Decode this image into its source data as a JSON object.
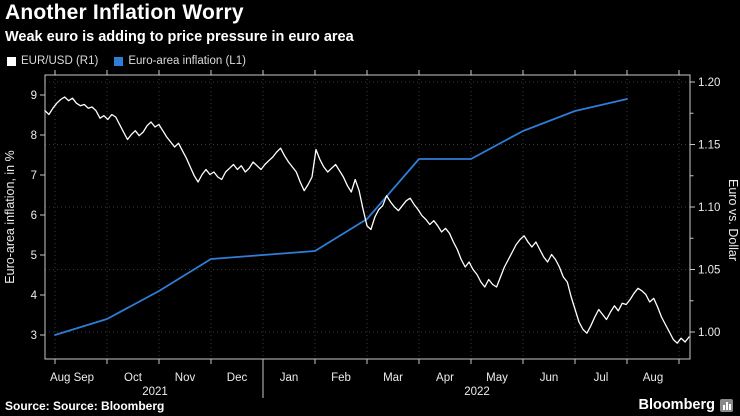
{
  "header": {
    "title": "Another Inflation Worry",
    "subtitle": "Weak euro is adding to price pressure in euro area"
  },
  "legend": [
    {
      "label": "EUR/USD (R1)",
      "color": "#ffffff"
    },
    {
      "label": "Euro-area inflation (L1)",
      "color": "#2e7dd7"
    }
  ],
  "footer": {
    "source": "Source: Source: Bloomberg",
    "brand": "Bloomberg",
    "brand_icon": "bar-chart-icon"
  },
  "colors": {
    "background": "#000000",
    "frame": "#c8c8c8",
    "grid": "#3a3a3a",
    "eurusd_line": "#ffffff",
    "inflation_line": "#2e7dd7"
  },
  "chart_data": {
    "type": "line",
    "title": "Another Inflation Worry",
    "subtitle": "Weak euro is adding to price pressure in euro area",
    "grid": "dotted, vertical per month and horizontal per right-axis tick",
    "legend_position": "top-left",
    "left_axis": {
      "title": "Euro-area inflation, in %",
      "ticks": [
        "9",
        "8",
        "7",
        "6",
        "5",
        "4",
        "3"
      ],
      "range": [
        2.5,
        9.5
      ]
    },
    "right_axis": {
      "title": "Euro vs. Dollar",
      "ticks": [
        "1.20",
        "1.15",
        "1.10",
        "1.05",
        "1.00"
      ],
      "range": [
        0.978,
        1.202
      ]
    },
    "x_axis": {
      "start": "mid-Aug 2021",
      "end": "late Aug 2022",
      "month_labels": [
        "Aug Sep",
        "Oct",
        "Nov",
        "Dec",
        "Jan",
        "Feb",
        "Mar",
        "Apr",
        "May",
        "Jun",
        "Jul",
        "Aug"
      ],
      "year_labels": [
        "2021",
        "2022"
      ],
      "year_separator_after_month_index": 4
    },
    "series": [
      {
        "name": "EUR/USD",
        "legend": "EUR/USD (R1)",
        "axis": "right",
        "color": "#ffffff",
        "sampling": "approx. every 2.3 days from mid-Aug 2021 to late Aug 2022",
        "values": [
          1.177,
          1.174,
          1.179,
          1.183,
          1.186,
          1.188,
          1.185,
          1.187,
          1.183,
          1.181,
          1.182,
          1.179,
          1.18,
          1.177,
          1.171,
          1.173,
          1.17,
          1.174,
          1.172,
          1.166,
          1.16,
          1.154,
          1.158,
          1.161,
          1.157,
          1.16,
          1.165,
          1.168,
          1.164,
          1.166,
          1.161,
          1.156,
          1.152,
          1.148,
          1.151,
          1.145,
          1.139,
          1.132,
          1.125,
          1.12,
          1.126,
          1.13,
          1.126,
          1.128,
          1.124,
          1.122,
          1.128,
          1.131,
          1.134,
          1.13,
          1.133,
          1.128,
          1.131,
          1.136,
          1.133,
          1.13,
          1.134,
          1.137,
          1.14,
          1.144,
          1.147,
          1.141,
          1.136,
          1.132,
          1.128,
          1.12,
          1.113,
          1.118,
          1.124,
          1.146,
          1.138,
          1.132,
          1.128,
          1.131,
          1.134,
          1.129,
          1.124,
          1.117,
          1.112,
          1.122,
          1.113,
          1.098,
          1.085,
          1.082,
          1.092,
          1.098,
          1.101,
          1.109,
          1.104,
          1.1,
          1.097,
          1.101,
          1.105,
          1.107,
          1.102,
          1.098,
          1.093,
          1.09,
          1.086,
          1.089,
          1.085,
          1.08,
          1.083,
          1.079,
          1.072,
          1.066,
          1.058,
          1.052,
          1.056,
          1.05,
          1.046,
          1.04,
          1.036,
          1.042,
          1.038,
          1.036,
          1.044,
          1.052,
          1.058,
          1.064,
          1.07,
          1.074,
          1.077,
          1.072,
          1.068,
          1.072,
          1.066,
          1.06,
          1.056,
          1.062,
          1.058,
          1.052,
          1.044,
          1.04,
          1.028,
          1.018,
          1.008,
          1.002,
          0.999,
          1.005,
          1.012,
          1.018,
          1.014,
          1.01,
          1.016,
          1.021,
          1.017,
          1.023,
          1.022,
          1.026,
          1.031,
          1.035,
          1.033,
          1.03,
          1.024,
          1.027,
          1.02,
          1.012,
          1.006,
          1.0,
          0.994,
          0.991,
          0.995,
          0.992,
          0.996
        ]
      },
      {
        "name": "Euro-area inflation",
        "legend": "Euro-area inflation (L1)",
        "axis": "left",
        "color": "#2e7dd7",
        "months": [
          "Aug 2021",
          "Sep 2021",
          "Oct 2021",
          "Nov 2021",
          "Dec 2021",
          "Jan 2022",
          "Feb 2022",
          "Mar 2022",
          "Apr 2022",
          "May 2022",
          "Jun 2022",
          "Jul 2022"
        ],
        "values": [
          3.0,
          3.4,
          4.1,
          4.9,
          5.0,
          5.1,
          5.9,
          7.4,
          7.4,
          8.1,
          8.6,
          8.9
        ]
      }
    ]
  }
}
